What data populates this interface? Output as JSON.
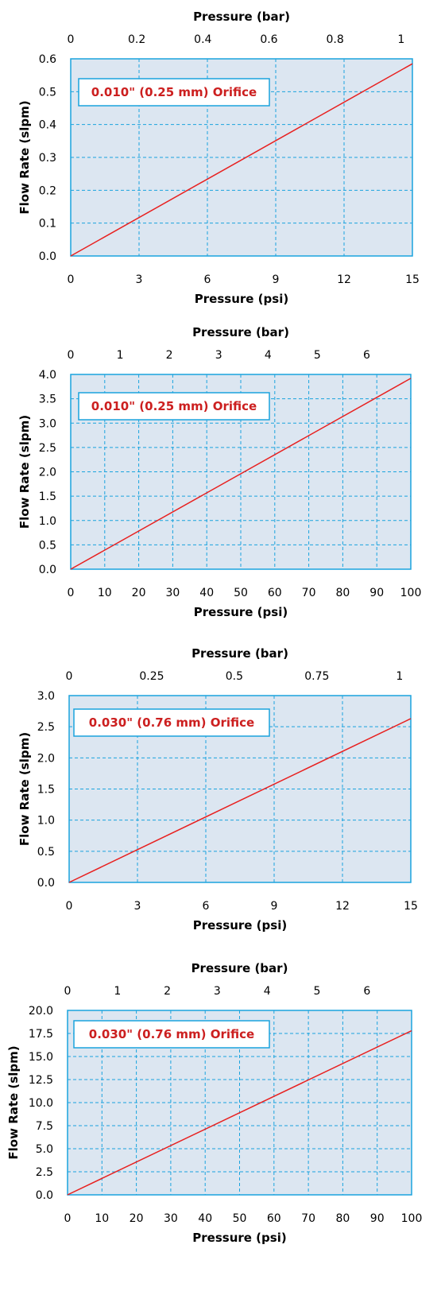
{
  "chart_data": [
    {
      "type": "line",
      "title": "",
      "xlabel": "Pressure (psi)",
      "ylabel": "Flow Rate (slpm)",
      "x2label": "Pressure (bar)",
      "xlim": [
        0,
        15
      ],
      "ylim": [
        0,
        0.6
      ],
      "x2lim": [
        0,
        1.0342
      ],
      "xticks": [
        0,
        3,
        6,
        9,
        12,
        15
      ],
      "xtick_labels": [
        "0",
        "3",
        "6",
        "9",
        "12",
        "15"
      ],
      "yticks": [
        0,
        0.1,
        0.2,
        0.3,
        0.4,
        0.5,
        0.6
      ],
      "ytick_labels": [
        "0.0",
        "0.1",
        "0.2",
        "0.3",
        "0.4",
        "0.5",
        "0.6"
      ],
      "x2ticks": [
        0,
        0.2,
        0.4,
        0.6,
        0.8,
        1
      ],
      "x2tick_labels": [
        "0",
        "0.2",
        "0.4",
        "0.6",
        "0.8",
        "1"
      ],
      "grid": true,
      "annotation": "0.010\" (0.25 mm) Orifice",
      "series": [
        {
          "x": [
            0,
            15
          ],
          "y": [
            0,
            0.585
          ],
          "color": "#e8201f"
        }
      ]
    },
    {
      "type": "line",
      "title": "",
      "xlabel": "Pressure (psi)",
      "ylabel": "Flow Rate (slpm)",
      "x2label": "Pressure (bar)",
      "xlim": [
        0,
        100
      ],
      "ylim": [
        0,
        4.0
      ],
      "x2lim": [
        0,
        6.895
      ],
      "xticks": [
        0,
        10,
        20,
        30,
        40,
        50,
        60,
        70,
        80,
        90,
        100
      ],
      "xtick_labels": [
        "0",
        "10",
        "20",
        "30",
        "40",
        "50",
        "60",
        "70",
        "80",
        "90",
        "100"
      ],
      "yticks": [
        0,
        0.5,
        1.0,
        1.5,
        2.0,
        2.5,
        3.0,
        3.5,
        4.0
      ],
      "ytick_labels": [
        "0.0",
        "0.5",
        "1.0",
        "1.5",
        "2.0",
        "2.5",
        "3.0",
        "3.5",
        "4.0"
      ],
      "x2ticks": [
        0,
        1,
        2,
        3,
        4,
        5,
        6
      ],
      "x2tick_labels": [
        "0",
        "1",
        "2",
        "3",
        "4",
        "5",
        "6"
      ],
      "grid": true,
      "annotation": "0.010\" (0.25 mm) Orifice",
      "series": [
        {
          "x": [
            0,
            100
          ],
          "y": [
            0,
            3.92
          ],
          "color": "#e8201f"
        }
      ]
    },
    {
      "type": "line",
      "title": "",
      "xlabel": "Pressure (psi)",
      "ylabel": "Flow Rate (slpm)",
      "x2label": "Pressure (bar)",
      "xlim": [
        0,
        15
      ],
      "ylim": [
        0,
        3.0
      ],
      "x2lim": [
        0,
        1.0342
      ],
      "xticks": [
        0,
        3,
        6,
        9,
        12,
        15
      ],
      "xtick_labels": [
        "0",
        "3",
        "6",
        "9",
        "12",
        "15"
      ],
      "yticks": [
        0,
        0.5,
        1.0,
        1.5,
        2.0,
        2.5,
        3.0
      ],
      "ytick_labels": [
        "0.0",
        "0.5",
        "1.0",
        "1.5",
        "2.0",
        "2.5",
        "3.0"
      ],
      "x2ticks": [
        0,
        0.25,
        0.5,
        0.75,
        1
      ],
      "x2tick_labels": [
        "0",
        "0.25",
        "0.5",
        "0.75",
        "1"
      ],
      "grid": true,
      "annotation": "0.030\" (0.76 mm) Orifice",
      "series": [
        {
          "x": [
            0,
            15
          ],
          "y": [
            0,
            2.63
          ],
          "color": "#e8201f"
        }
      ]
    },
    {
      "type": "line",
      "title": "",
      "xlabel": "Pressure (psi)",
      "ylabel": "Flow Rate (slpm)",
      "x2label": "Pressure (bar)",
      "xlim": [
        0,
        100
      ],
      "ylim": [
        0,
        20.0
      ],
      "x2lim": [
        0,
        6.895
      ],
      "xticks": [
        0,
        10,
        20,
        30,
        40,
        50,
        60,
        70,
        80,
        90,
        100
      ],
      "xtick_labels": [
        "0",
        "10",
        "20",
        "30",
        "40",
        "50",
        "60",
        "70",
        "80",
        "90",
        "100"
      ],
      "yticks": [
        0,
        2.5,
        5.0,
        7.5,
        10.0,
        12.5,
        15.0,
        17.5,
        20.0
      ],
      "ytick_labels": [
        "0.0",
        "2.5",
        "5.0",
        "7.5",
        "10.0",
        "12.5",
        "15.0",
        "17.5",
        "20.0"
      ],
      "x2ticks": [
        0,
        1,
        2,
        3,
        4,
        5,
        6
      ],
      "x2tick_labels": [
        "0",
        "1",
        "2",
        "3",
        "4",
        "5",
        "6"
      ],
      "grid": true,
      "annotation": "0.030\" (0.76 mm) Orifice",
      "series": [
        {
          "x": [
            0,
            100
          ],
          "y": [
            0,
            17.8
          ],
          "color": "#e8201f"
        }
      ]
    }
  ],
  "colors": {
    "plot_bg": "#dce6f1",
    "frame": "#1aa3de",
    "grid": "#1aa3de",
    "line": "#e8201f",
    "annotation_text": "#cc1f1f",
    "annotation_border": "#1aa3de"
  }
}
